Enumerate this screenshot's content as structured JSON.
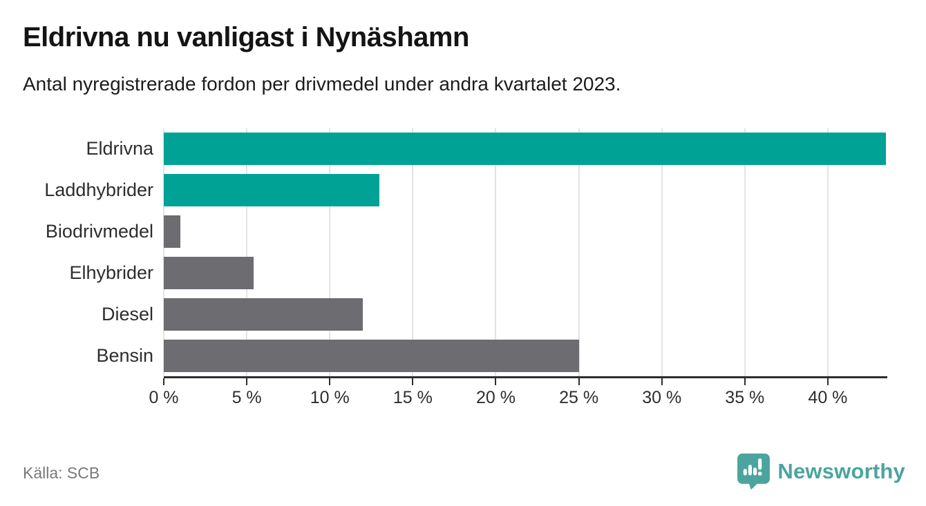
{
  "header": {
    "title": "Eldrivna nu vanligast i Nynäshamn",
    "subtitle": "Antal nyregistrerade fordon per drivmedel under andra kvartalet 2023."
  },
  "chart_data": {
    "type": "bar",
    "orientation": "horizontal",
    "title": "Eldrivna nu vanligast i Nynäshamn",
    "subtitle": "Antal nyregistrerade fordon per drivmedel under andra kvartalet 2023.",
    "categories": [
      "Eldrivna",
      "Laddhybrider",
      "Biodrivmedel",
      "Elhybrider",
      "Diesel",
      "Bensin"
    ],
    "values": [
      43.5,
      13,
      1,
      5.4,
      12,
      25
    ],
    "unit": "%",
    "bar_colors": [
      "#00a296",
      "#00a296",
      "#6c6c71",
      "#6c6c71",
      "#6c6c71",
      "#6c6c71"
    ],
    "xlabel": "",
    "ylabel": "",
    "xlim": [
      0,
      43.5
    ],
    "x_ticks": [
      0,
      5,
      10,
      15,
      20,
      25,
      30,
      35,
      40
    ],
    "x_tick_labels": [
      "0 %",
      "5 %",
      "10 %",
      "15 %",
      "20 %",
      "25 %",
      "30 %",
      "35 %",
      "40 %"
    ],
    "grid": "vertical",
    "legend": "none"
  },
  "footer": {
    "source": "Källa: SCB",
    "brand": "Newsworthy"
  },
  "colors": {
    "accent_teal": "#00a296",
    "neutral_gray": "#6c6c71",
    "brand_teal": "#4ba49e",
    "axis": "#2e2e2e",
    "gridline": "#e3e3e3",
    "title_text": "#141414",
    "source_text": "#787878"
  },
  "icons": {
    "logo": "newsworthy-bubble-chart-icon"
  }
}
